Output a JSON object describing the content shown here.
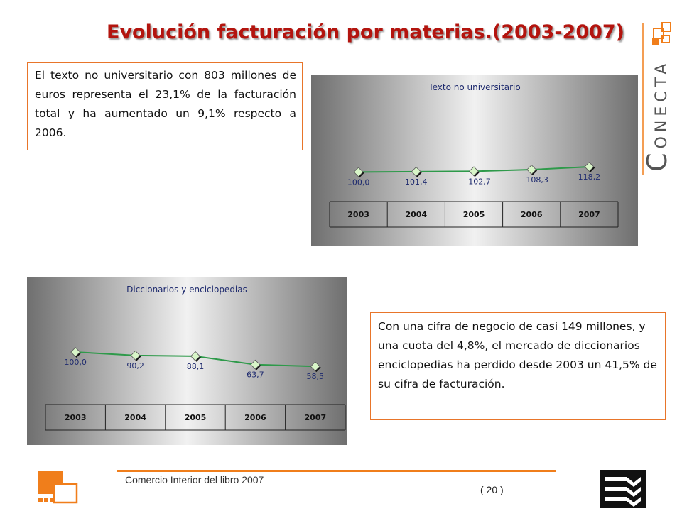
{
  "slide": {
    "title": "Evolución facturación por materias.(2003-2007)",
    "box1_text": "El texto no universitario con 803 millones de euros representa el 23,1% de la facturación total y ha aumentado un 9,1% respecto a 2006.",
    "box2_text": "Con una cifra de negocio de casi 149 millones, y una cuota del 4,8%, el mercado de diccionarios enciclopedias ha perdido desde 2003 un 41,5% de su cifra de facturación.",
    "brand_logo_text": "CONECTA",
    "footer_text": "Comercio Interior del libro 2007",
    "page_number": "( 20 )"
  },
  "colors": {
    "title": "#b3140e",
    "accent_orange": "#f07e1b",
    "line": "#2e9a4a",
    "marker_fill": "#d8f5c8"
  },
  "chart_data": [
    {
      "type": "line",
      "title": "Texto no universitario",
      "categories": [
        "2003",
        "2004",
        "2005",
        "2006",
        "2007"
      ],
      "values": [
        100.0,
        101.4,
        102.7,
        108.3,
        118.2
      ],
      "labels": [
        "100,0",
        "101,4",
        "102,7",
        "108,3",
        "118,2"
      ],
      "ylim": [
        0,
        350
      ]
    },
    {
      "type": "line",
      "title": "Diccionarios y enciclopedias",
      "categories": [
        "2003",
        "2004",
        "2005",
        "2006",
        "2007"
      ],
      "values": [
        100.0,
        90.2,
        88.1,
        63.7,
        58.5
      ],
      "labels": [
        "100,0",
        "90,2",
        "88,1",
        "63,7",
        "58,5"
      ],
      "ylim": [
        -50,
        240
      ]
    }
  ]
}
